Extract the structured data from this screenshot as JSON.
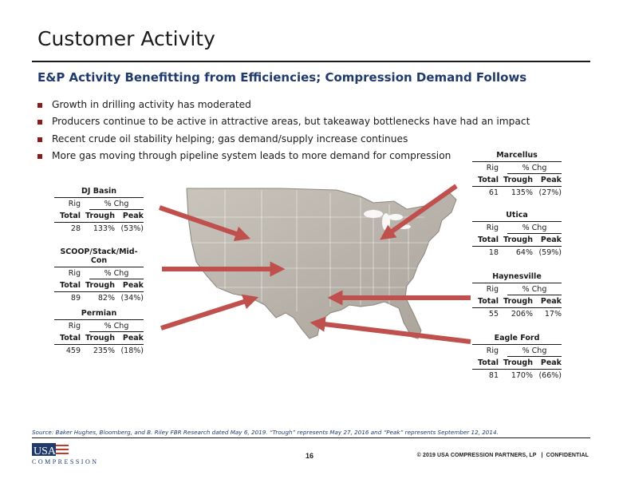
{
  "title": "Customer Activity",
  "subtitle": "E&P Activity Benefitting from Efficiencies; Compression Demand Follows",
  "bullets": [
    "Growth in drilling activity has moderated",
    "Producers continue to be active in attractive areas, but takeaway bottlenecks have had an impact",
    "Recent crude oil stability helping; gas demand/supply increase continues",
    "More gas moving through pipeline system leads to more demand for compression"
  ],
  "table_headers": {
    "rig": "Rig",
    "chg": "% Chg",
    "total": "Total",
    "trough": "Trough",
    "peak": "Peak"
  },
  "basins": {
    "dj": {
      "name": "DJ Basin",
      "total": "28",
      "trough": "133%",
      "peak": "(53%)"
    },
    "scoop": {
      "name": "SCOOP/Stack/Mid-Con",
      "total": "89",
      "trough": "82%",
      "peak": "(34%)"
    },
    "permian": {
      "name": "Permian",
      "total": "459",
      "trough": "235%",
      "peak": "(18%)"
    },
    "marcellus": {
      "name": "Marcellus",
      "total": "61",
      "trough": "135%",
      "peak": "(27%)"
    },
    "utica": {
      "name": "Utica",
      "total": "18",
      "trough": "64%",
      "peak": "(59%)"
    },
    "haynesville": {
      "name": "Haynesville",
      "total": "55",
      "trough": "206%",
      "peak": "17%"
    },
    "eagleford": {
      "name": "Eagle Ford",
      "total": "81",
      "trough": "170%",
      "peak": "(66%)"
    }
  },
  "source": "Source: Baker Hughes, Bloomberg, and B. Riley FBR Research dated May 6, 2019. “Trough” represents May 27, 2016 and “Peak” represents September 12, 2014.",
  "logo": {
    "top": "USA",
    "bottom": "COMPRESSION"
  },
  "page_number": "16",
  "footer": "© 2019 USA COMPRESSION PARTNERS, LP   |  CONFIDENTIAL",
  "colors": {
    "accent": "#8b1a1a",
    "navy": "#1f3a6b",
    "arrow": "#c0504d",
    "map_land": "#b9b3ab"
  }
}
